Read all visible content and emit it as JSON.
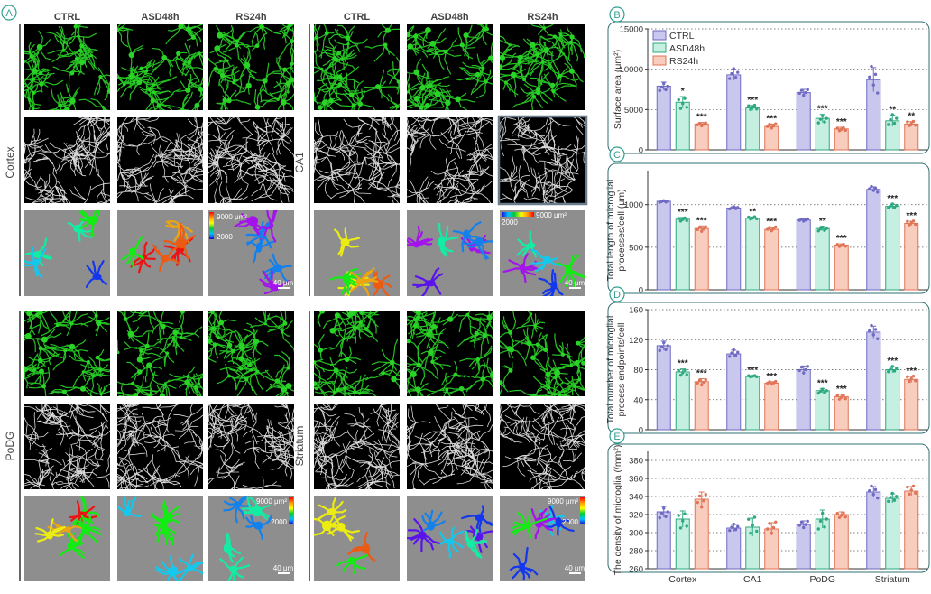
{
  "panel_letters": [
    "A",
    "B",
    "C",
    "D",
    "E"
  ],
  "microscopy": {
    "column_headers": [
      "CTRL",
      "ASD48h",
      "RS24h"
    ],
    "regions": [
      "Cortex",
      "CA1",
      "PoDG",
      "Striatum"
    ],
    "scale_bar_label": "40 μm",
    "colorbar_max": "9000 μm²",
    "colorbar_min": "2000"
  },
  "colors": {
    "ctrl_fill": "#c9c7ee",
    "ctrl_edge": "#6f6ac2",
    "asd_fill": "#c5efe0",
    "asd_edge": "#2ea87f",
    "rs_fill": "#f8cdbd",
    "rs_edge": "#df7457",
    "panel_teal": "#2f9e8f",
    "green_channel": "#29d427",
    "gray_render": "#8e8e8e"
  },
  "chart_data": [
    {
      "panel": "B",
      "type": "bar",
      "ylabel": "Surface area (μm²)",
      "ylim": [
        0,
        15000
      ],
      "yticks": [
        0,
        5000,
        10000,
        15000
      ],
      "categories": [
        "Cortex",
        "CA1",
        "PoDG",
        "Striatum"
      ],
      "legend": [
        "CTRL",
        "ASD48h",
        "RS24h"
      ],
      "legend_position": "top-left",
      "series": [
        {
          "name": "CTRL",
          "values": [
            7900,
            9300,
            7100,
            8700
          ],
          "errors": [
            500,
            700,
            400,
            1500
          ]
        },
        {
          "name": "ASD48h",
          "values": [
            5900,
            5200,
            3900,
            3600
          ],
          "errors": [
            700,
            300,
            500,
            700
          ]
        },
        {
          "name": "RS24h",
          "values": [
            3200,
            2900,
            2600,
            3200
          ],
          "errors": [
            200,
            300,
            200,
            300
          ]
        }
      ],
      "significance": [
        [
          "",
          "*",
          "***"
        ],
        [
          "",
          "***",
          "***"
        ],
        [
          "",
          "***",
          "***"
        ],
        [
          "",
          "**",
          "**"
        ]
      ],
      "grid": true
    },
    {
      "panel": "C",
      "type": "bar",
      "ylabel": "Total length of microglial processes/cell (μm)",
      "ylim": [
        0,
        1400
      ],
      "yticks": [
        0,
        500,
        1000
      ],
      "categories": [
        "Cortex",
        "CA1",
        "PoDG",
        "Striatum"
      ],
      "series": [
        {
          "name": "CTRL",
          "values": [
            1040,
            960,
            820,
            1180
          ],
          "errors": [
            10,
            15,
            15,
            30
          ]
        },
        {
          "name": "ASD48h",
          "values": [
            830,
            840,
            720,
            980
          ],
          "errors": [
            20,
            15,
            25,
            25
          ]
        },
        {
          "name": "RS24h",
          "values": [
            720,
            710,
            525,
            780
          ],
          "errors": [
            30,
            25,
            15,
            25
          ]
        }
      ],
      "significance": [
        [
          "",
          "***",
          "***"
        ],
        [
          "",
          "**",
          "***"
        ],
        [
          "",
          "**",
          "***"
        ],
        [
          "",
          "***",
          "***"
        ]
      ],
      "grid": true
    },
    {
      "panel": "D",
      "type": "bar",
      "ylabel": "Total number of microglial process endpoints/cell",
      "ylim": [
        0,
        160
      ],
      "yticks": [
        0,
        40,
        80,
        120,
        160
      ],
      "categories": [
        "Cortex",
        "CA1",
        "PoDG",
        "Striatum"
      ],
      "series": [
        {
          "name": "CTRL",
          "values": [
            112,
            101,
            80,
            130
          ],
          "errors": [
            6,
            5,
            5,
            8
          ]
        },
        {
          "name": "ASD48h",
          "values": [
            77,
            71,
            52,
            80
          ],
          "errors": [
            4,
            1,
            3,
            4
          ]
        },
        {
          "name": "RS24h",
          "values": [
            64,
            62,
            44,
            67
          ],
          "errors": [
            4,
            2,
            3,
            4
          ]
        }
      ],
      "significance": [
        [
          "",
          "***",
          "***"
        ],
        [
          "",
          "***",
          "***"
        ],
        [
          "",
          "***",
          "***"
        ],
        [
          "",
          "***",
          "***"
        ]
      ],
      "grid": true
    },
    {
      "panel": "E",
      "type": "bar",
      "ylabel": "The density of microglia (/mm²)",
      "ylim": [
        260,
        390
      ],
      "yticks": [
        260,
        280,
        300,
        320,
        340,
        360,
        380
      ],
      "categories": [
        "Cortex",
        "CA1",
        "PoDG",
        "Striatum"
      ],
      "series": [
        {
          "name": "CTRL",
          "values": [
            323,
            305,
            309,
            345
          ],
          "errors": [
            6,
            4,
            4,
            6
          ]
        },
        {
          "name": "ASD48h",
          "values": [
            315,
            306,
            315,
            338
          ],
          "errors": [
            9,
            10,
            10,
            5
          ]
        },
        {
          "name": "RS24h",
          "values": [
            337,
            304,
            320,
            346
          ],
          "errors": [
            8,
            7,
            3,
            5
          ]
        }
      ],
      "significance": [
        [
          "",
          "",
          ""
        ],
        [
          "",
          "",
          ""
        ],
        [
          "",
          "",
          ""
        ],
        [
          "",
          "",
          ""
        ]
      ],
      "grid": true
    }
  ]
}
